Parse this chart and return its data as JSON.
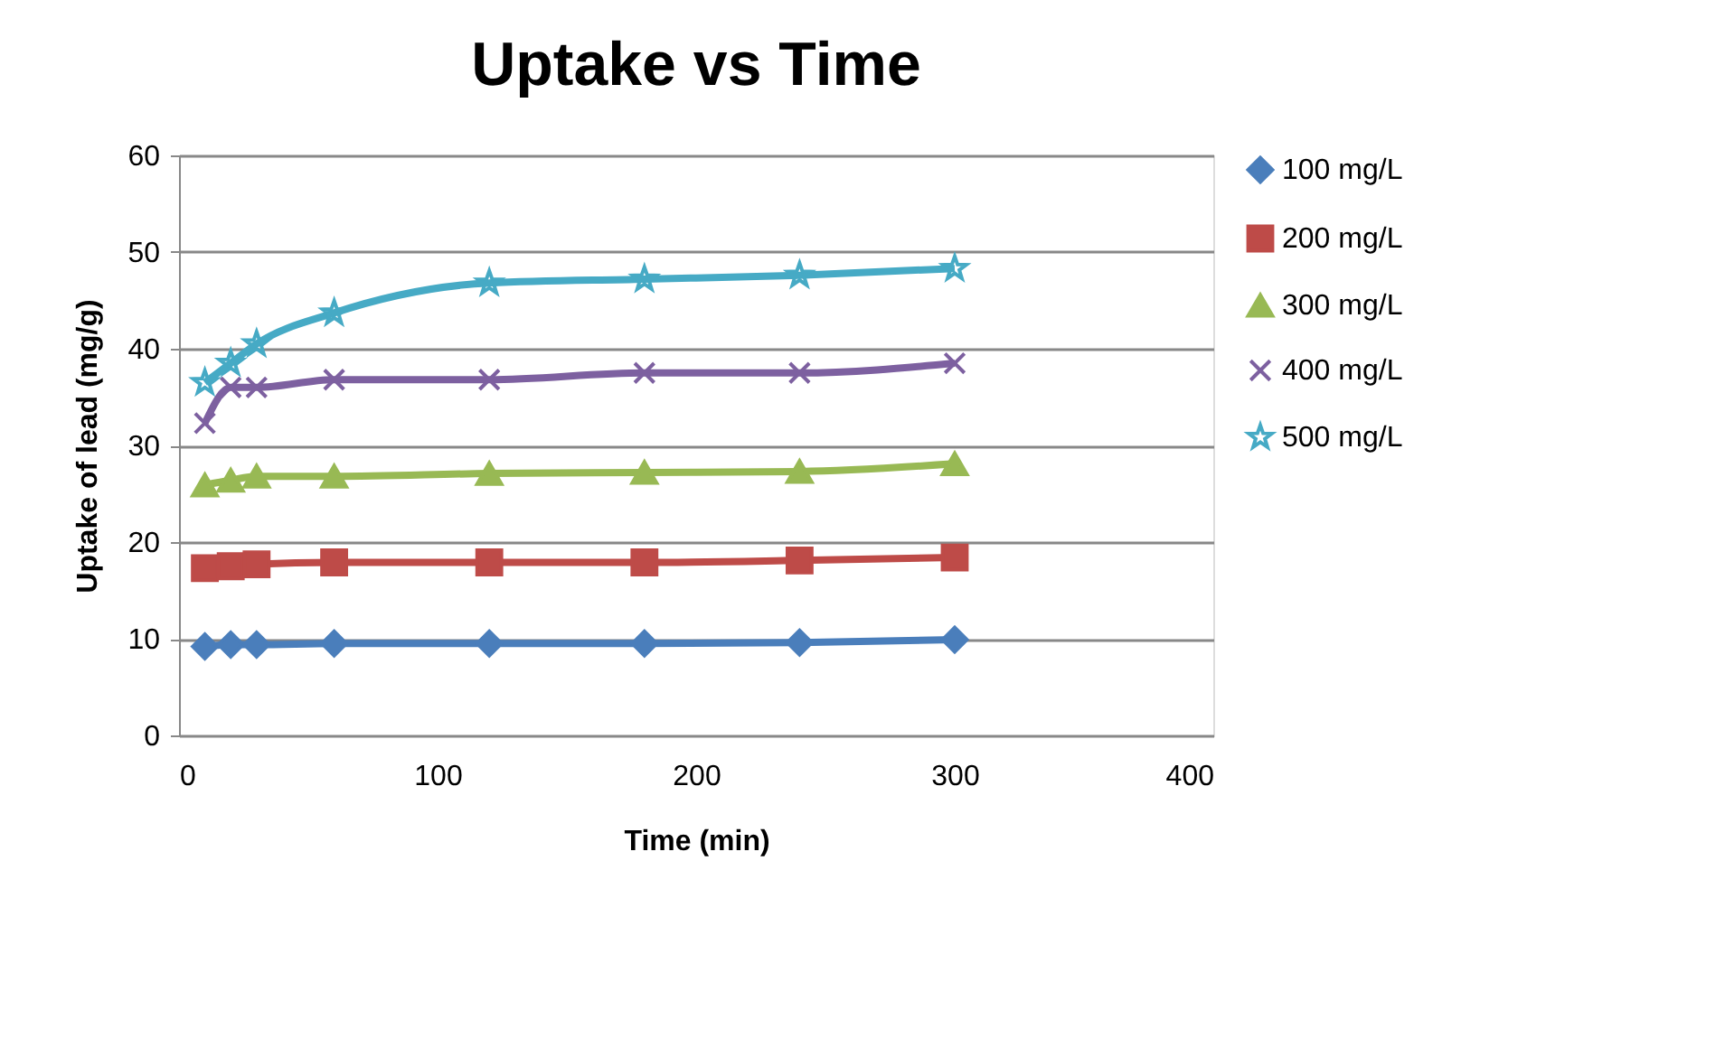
{
  "chart_data": {
    "type": "line",
    "title": "Uptake vs Time",
    "xlabel": "Time (min)",
    "ylabel": "Uptake of lead (mg/g)",
    "x": [
      10,
      20,
      30,
      60,
      120,
      180,
      240,
      300
    ],
    "series": [
      {
        "name": "100 mg/L",
        "color": "#4a7ebb",
        "marker": "diamond",
        "values": [
          9.2,
          9.4,
          9.4,
          9.5,
          9.5,
          9.5,
          9.6,
          9.9
        ]
      },
      {
        "name": "200 mg/L",
        "color": "#be4b48",
        "marker": "square",
        "values": [
          17.3,
          17.5,
          17.7,
          17.9,
          17.9,
          17.9,
          18.1,
          18.4
        ]
      },
      {
        "name": "300 mg/L",
        "color": "#98b954",
        "marker": "triangle",
        "values": [
          25.9,
          26.4,
          26.8,
          26.8,
          27.1,
          27.2,
          27.3,
          28.1
        ]
      },
      {
        "name": "400 mg/L",
        "color": "#7d60a0",
        "marker": "cross",
        "values": [
          32.3,
          36.0,
          36.0,
          36.8,
          36.8,
          37.5,
          37.5,
          38.5
        ]
      },
      {
        "name": "500 mg/L",
        "color": "#46aac5",
        "marker": "star",
        "values": [
          36.5,
          38.5,
          40.5,
          43.7,
          46.8,
          47.2,
          47.6,
          48.3
        ]
      }
    ],
    "xlim": [
      0,
      400
    ],
    "xticks": [
      0,
      100,
      200,
      300,
      400
    ],
    "ylim": [
      0,
      60
    ],
    "yticks": [
      0,
      10,
      20,
      30,
      40,
      50,
      60
    ],
    "grid": "y",
    "legend": "right",
    "line_style": "solid"
  }
}
